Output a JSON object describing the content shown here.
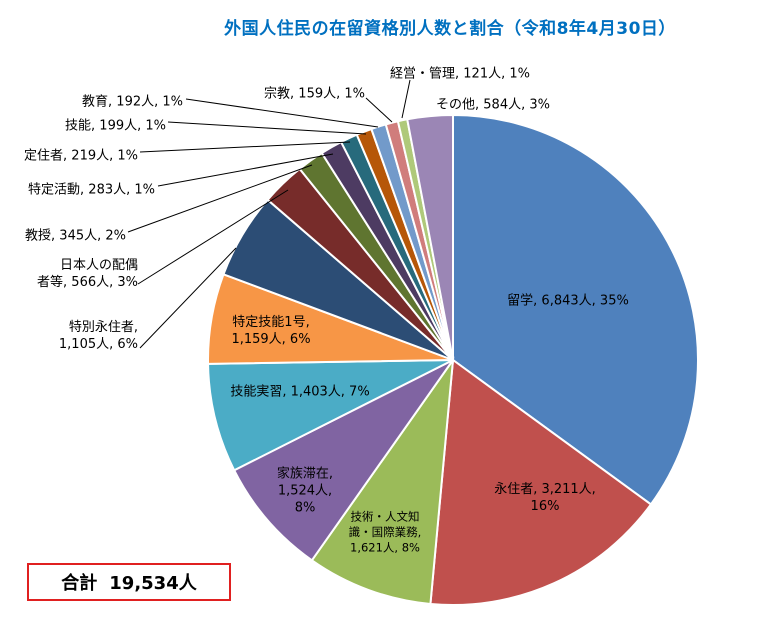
{
  "chart_data": {
    "type": "pie",
    "title": "外国人住民の在留資格別人数と割合（令和8年4月30日）",
    "total_label": "合計",
    "total_value": "19,534人",
    "slices": [
      {
        "name": "留学",
        "value": 6843,
        "percent": "35%",
        "color": "#4f81bd",
        "label_lines": [
          "留学, 6,843人, 35%"
        ]
      },
      {
        "name": "永住者",
        "value": 3211,
        "percent": "16%",
        "color": "#c0504d",
        "label_lines": [
          "永住者, 3,211人,",
          "16%"
        ]
      },
      {
        "name": "技術・人文知識・国際業務",
        "value": 1621,
        "percent": "8%",
        "color": "#9bbb59",
        "label_lines": [
          "技術・人文知",
          "識・国際業務,",
          "1,621人, 8%"
        ]
      },
      {
        "name": "家族滞在",
        "value": 1524,
        "percent": "8%",
        "color": "#8064a2",
        "label_lines": [
          "家族滞在,",
          "1,524人,",
          "8%"
        ]
      },
      {
        "name": "技能実習",
        "value": 1403,
        "percent": "7%",
        "color": "#4bacc6",
        "label_lines": [
          "技能実習, 1,403人, 7%"
        ]
      },
      {
        "name": "特定技能1号",
        "value": 1159,
        "percent": "6%",
        "color": "#f79646",
        "label_lines": [
          "特定技能1号,",
          "1,159人, 6%"
        ]
      },
      {
        "name": "特別永住者",
        "value": 1105,
        "percent": "6%",
        "color": "#2c4d75",
        "label_lines": [
          "特別永住者,",
          "1,105人, 6%"
        ]
      },
      {
        "name": "日本人の配偶者等",
        "value": 566,
        "percent": "3%",
        "color": "#772c2a",
        "label_lines": [
          "日本人の配偶",
          "者等, 566人, 3%"
        ]
      },
      {
        "name": "教授",
        "value": 345,
        "percent": "2%",
        "color": "#5f7530",
        "label_lines": [
          "教授, 345人, 2%"
        ]
      },
      {
        "name": "特定活動",
        "value": 283,
        "percent": "1%",
        "color": "#4d3b62",
        "label_lines": [
          "特定活動, 283人, 1%"
        ]
      },
      {
        "name": "定住者",
        "value": 219,
        "percent": "1%",
        "color": "#276a7c",
        "label_lines": [
          "定住者, 219人, 1%"
        ]
      },
      {
        "name": "技能",
        "value": 199,
        "percent": "1%",
        "color": "#b65708",
        "label_lines": [
          "技能, 199人, 1%"
        ]
      },
      {
        "name": "教育",
        "value": 192,
        "percent": "1%",
        "color": "#729aca",
        "label_lines": [
          "教育, 192人, 1%"
        ]
      },
      {
        "name": "宗教",
        "value": 159,
        "percent": "1%",
        "color": "#d07d7c",
        "label_lines": [
          "宗教, 159人, 1%"
        ]
      },
      {
        "name": "経営・管理",
        "value": 121,
        "percent": "1%",
        "color": "#afc97a",
        "label_lines": [
          "経営・管理, 121人, 1%"
        ]
      },
      {
        "name": "その他",
        "value": 584,
        "percent": "3%",
        "color": "#9b86b5",
        "label_lines": [
          "その他, 584人, 3%"
        ]
      }
    ]
  }
}
